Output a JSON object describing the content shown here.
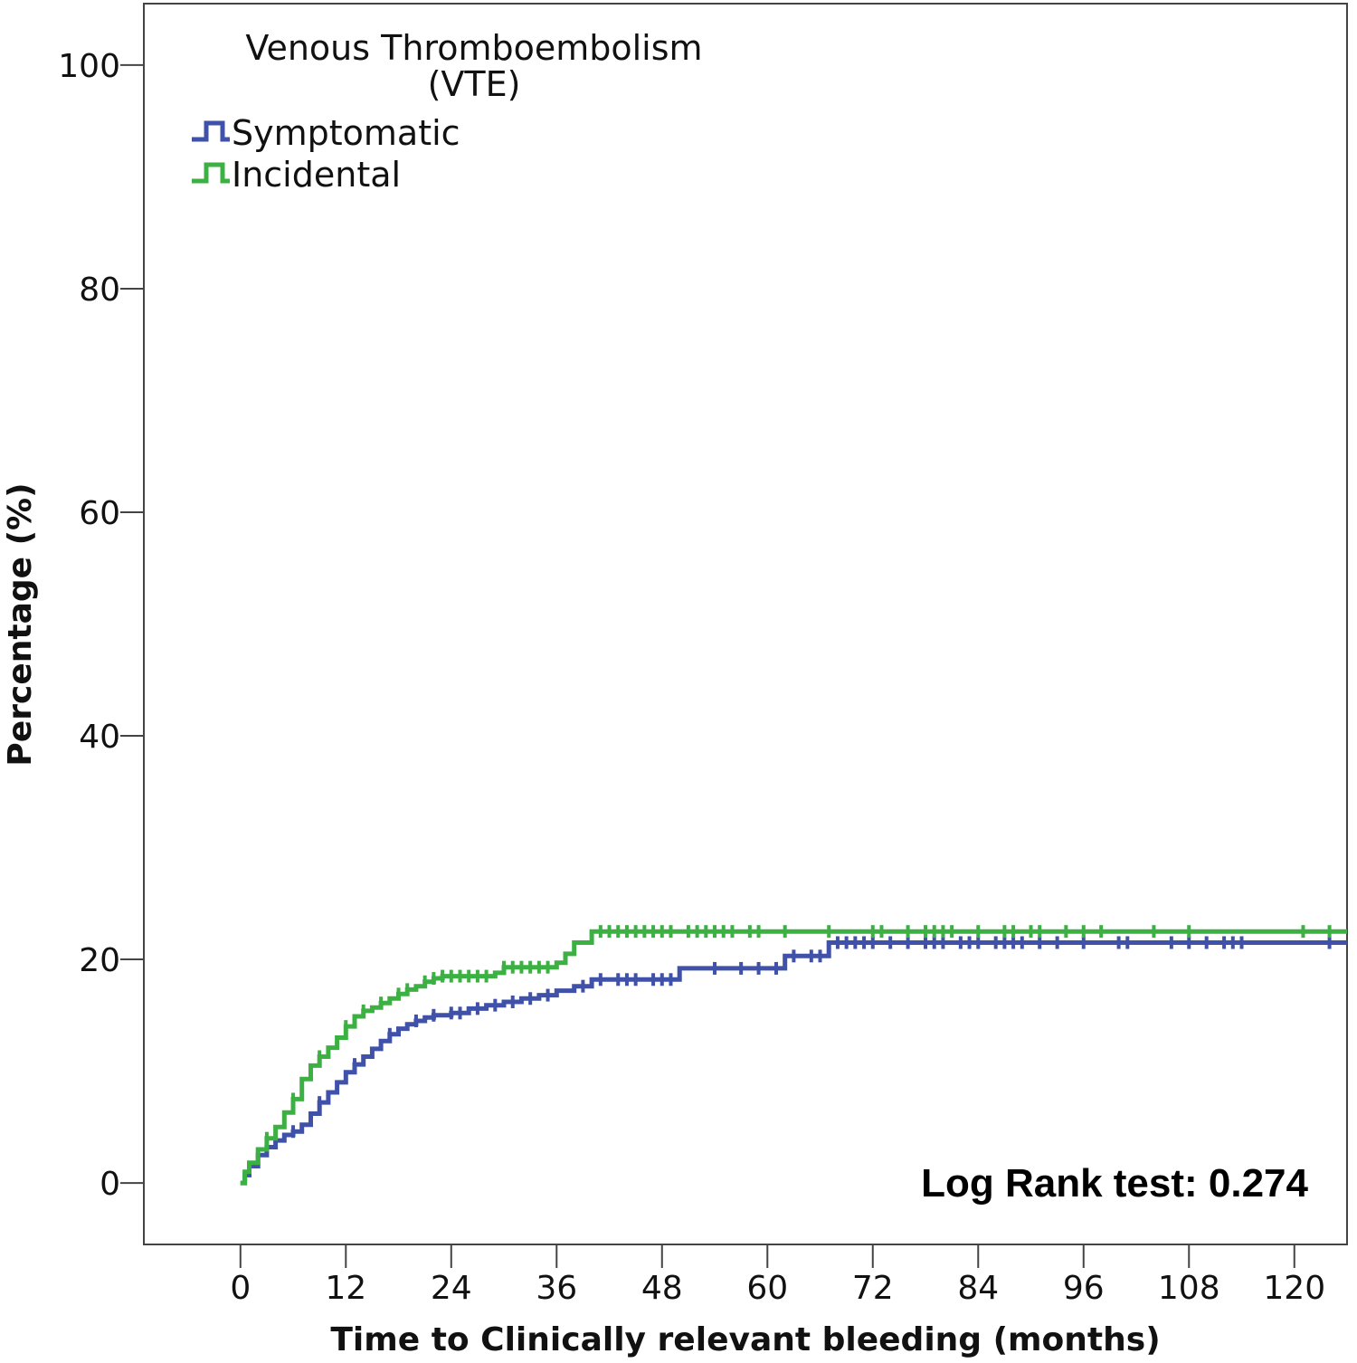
{
  "chart_data": {
    "type": "line",
    "subtype": "kaplan-meier-cumulative-incidence",
    "title": "",
    "xlabel": "Time to Clinically relevant bleeding (months)",
    "ylabel": "Percentage (%)",
    "xlim": [
      -11,
      126
    ],
    "ylim": [
      -5.5,
      105.5
    ],
    "xticks": [
      0,
      12,
      24,
      36,
      48,
      60,
      72,
      84,
      96,
      108,
      120
    ],
    "yticks": [
      0,
      20,
      40,
      60,
      80,
      100
    ],
    "grid": false,
    "legend": {
      "title_line1": "Venous Thromboembolism",
      "title_line2": "(VTE)",
      "position": "top-left"
    },
    "annotation": "Log Rank test: 0.274",
    "series": [
      {
        "name": "Symptomatic",
        "color": "#3f51a8",
        "points": [
          [
            0,
            0
          ],
          [
            0.5,
            0.7
          ],
          [
            1,
            1.5
          ],
          [
            2,
            2.5
          ],
          [
            3,
            3.2
          ],
          [
            4,
            3.8
          ],
          [
            5,
            4.3
          ],
          [
            6,
            4.6
          ],
          [
            7,
            5.2
          ],
          [
            8,
            6.2
          ],
          [
            9,
            7.2
          ],
          [
            10,
            8.1
          ],
          [
            11,
            9.0
          ],
          [
            12,
            9.9
          ],
          [
            13,
            10.6
          ],
          [
            14,
            11.3
          ],
          [
            15,
            12.0
          ],
          [
            16,
            12.7
          ],
          [
            17,
            13.3
          ],
          [
            18,
            13.8
          ],
          [
            19,
            14.2
          ],
          [
            20,
            14.5
          ],
          [
            21,
            14.8
          ],
          [
            22,
            15.0
          ],
          [
            24,
            15.2
          ],
          [
            26,
            15.6
          ],
          [
            28,
            15.9
          ],
          [
            30,
            16.2
          ],
          [
            32,
            16.5
          ],
          [
            34,
            16.8
          ],
          [
            36,
            17.2
          ],
          [
            38,
            17.6
          ],
          [
            40,
            18.2
          ],
          [
            42,
            18.2
          ],
          [
            44,
            18.2
          ],
          [
            46,
            18.2
          ],
          [
            49,
            18.2
          ],
          [
            50,
            19.2
          ],
          [
            55,
            19.2
          ],
          [
            61,
            19.2
          ],
          [
            62,
            20.3
          ],
          [
            66,
            20.3
          ],
          [
            67,
            21.5
          ],
          [
            80,
            21.5
          ],
          [
            100,
            21.5
          ],
          [
            126,
            21.5
          ]
        ],
        "censor_times": [
          2,
          4,
          6,
          9,
          13,
          17,
          20,
          22,
          24,
          25,
          27,
          29,
          31,
          33,
          35,
          39,
          41,
          43,
          44,
          45,
          47,
          48,
          49,
          54,
          57,
          59,
          61,
          63,
          65,
          66,
          68,
          69,
          70,
          71,
          72,
          74,
          76,
          78,
          79,
          80,
          82,
          83,
          84,
          86,
          87,
          88,
          89,
          91,
          93,
          96,
          100,
          101,
          106,
          108,
          110,
          112,
          113,
          114,
          124
        ]
      },
      {
        "name": "Incidental",
        "color": "#3cb043",
        "points": [
          [
            0,
            0
          ],
          [
            0.5,
            1.0
          ],
          [
            1,
            1.8
          ],
          [
            2,
            3.0
          ],
          [
            3,
            4.0
          ],
          [
            4,
            5.0
          ],
          [
            5,
            6.3
          ],
          [
            6,
            7.5
          ],
          [
            7,
            9.3
          ],
          [
            8,
            10.5
          ],
          [
            9,
            11.3
          ],
          [
            10,
            12.1
          ],
          [
            11,
            13.0
          ],
          [
            12,
            14.0
          ],
          [
            13,
            14.9
          ],
          [
            14,
            15.4
          ],
          [
            15,
            15.7
          ],
          [
            16,
            16.1
          ],
          [
            17,
            16.5
          ],
          [
            18,
            16.9
          ],
          [
            19,
            17.3
          ],
          [
            20,
            17.6
          ],
          [
            21,
            18.0
          ],
          [
            22,
            18.3
          ],
          [
            23,
            18.5
          ],
          [
            24,
            18.5
          ],
          [
            27,
            18.5
          ],
          [
            29,
            18.8
          ],
          [
            30,
            19.3
          ],
          [
            33,
            19.3
          ],
          [
            35,
            19.3
          ],
          [
            36,
            19.7
          ],
          [
            37,
            20.5
          ],
          [
            38,
            21.5
          ],
          [
            40,
            22.5
          ],
          [
            50,
            22.5
          ],
          [
            80,
            22.5
          ],
          [
            100,
            22.5
          ],
          [
            126,
            22.5
          ]
        ],
        "censor_times": [
          3,
          6,
          9,
          12,
          14,
          16,
          18,
          19,
          21,
          22,
          23,
          24,
          25,
          26,
          27,
          28,
          30,
          31,
          32,
          33,
          34,
          35,
          41,
          42,
          43,
          44,
          45,
          46,
          47,
          48,
          49,
          51,
          52,
          53,
          54,
          55,
          56,
          58,
          59,
          62,
          67,
          72,
          73,
          76,
          78,
          79,
          80,
          81,
          84,
          87,
          88,
          90,
          91,
          94,
          96,
          98,
          104,
          108,
          121,
          124
        ]
      }
    ]
  }
}
